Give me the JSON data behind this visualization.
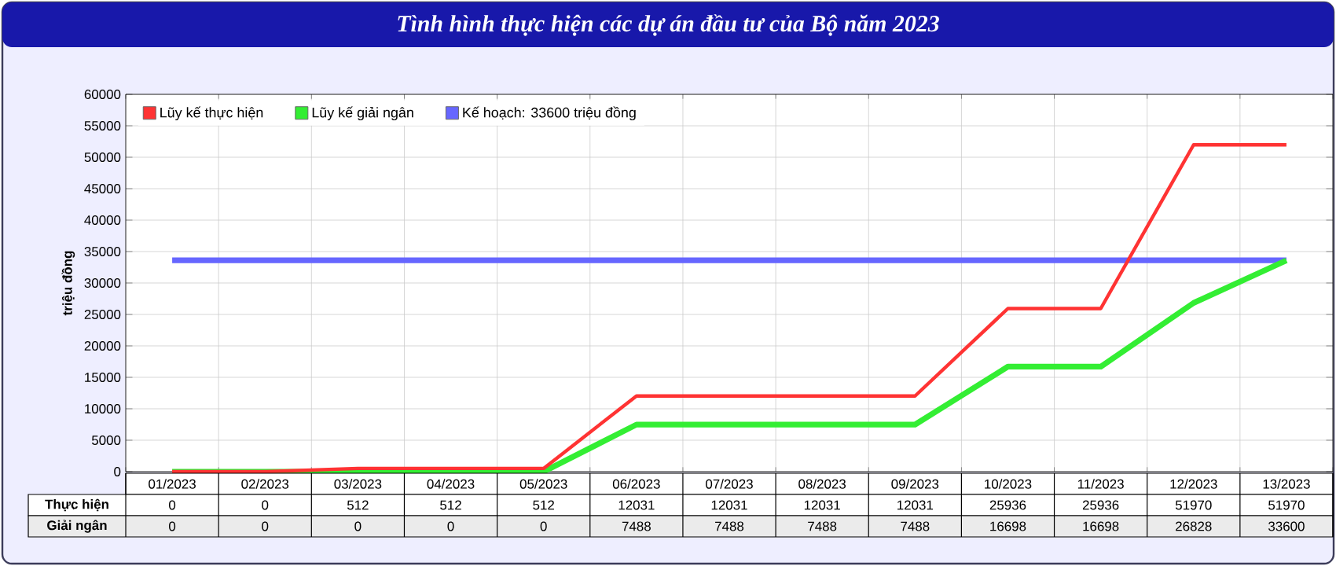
{
  "chart_data": {
    "type": "line",
    "title": "Tình hình thực hiện các dự án đầu tư của Bộ năm 2023",
    "ylabel": "triệu đồng",
    "categories": [
      "01/2023",
      "02/2023",
      "03/2023",
      "04/2023",
      "05/2023",
      "06/2023",
      "07/2023",
      "08/2023",
      "09/2023",
      "10/2023",
      "11/2023",
      "12/2023",
      "13/2023"
    ],
    "series": [
      {
        "name": "Lũy kế thực hiện",
        "color": "#ff3333",
        "values": [
          0,
          0,
          512,
          512,
          512,
          12031,
          12031,
          12031,
          12031,
          25936,
          25936,
          51970,
          51970
        ],
        "value_labels": [
          "0",
          "0",
          "512",
          "512",
          "512",
          "12031",
          "12031",
          "12031",
          "12031",
          "25936",
          "25936",
          "51970",
          "51970"
        ]
      },
      {
        "name": "Lũy kế giải ngân",
        "color": "#33ee33",
        "values": [
          0,
          0,
          0,
          0,
          0,
          7488,
          7488,
          7488,
          7488,
          16698,
          16698,
          26828,
          33600
        ],
        "value_labels": [
          "0",
          "0",
          "0",
          "0",
          "0",
          "7488",
          "7488",
          "7488",
          "7488",
          "16698",
          "16698",
          "26828",
          "33600"
        ]
      },
      {
        "name": "Kế hoạch: 33600 triệu đồng",
        "color": "#6666ff",
        "values": [
          33600,
          33600,
          33600,
          33600,
          33600,
          33600,
          33600,
          33600,
          33600,
          33600,
          33600,
          33600,
          33600
        ]
      }
    ],
    "annotations": [
      "Thực hiện",
      "Giải ngân"
    ],
    "ylim": [
      0,
      60000
    ],
    "yticks": [
      0,
      5000,
      10000,
      15000,
      20000,
      25000,
      30000,
      35000,
      40000,
      45000,
      50000,
      55000,
      60000
    ],
    "grid": true,
    "legend": "top left"
  }
}
